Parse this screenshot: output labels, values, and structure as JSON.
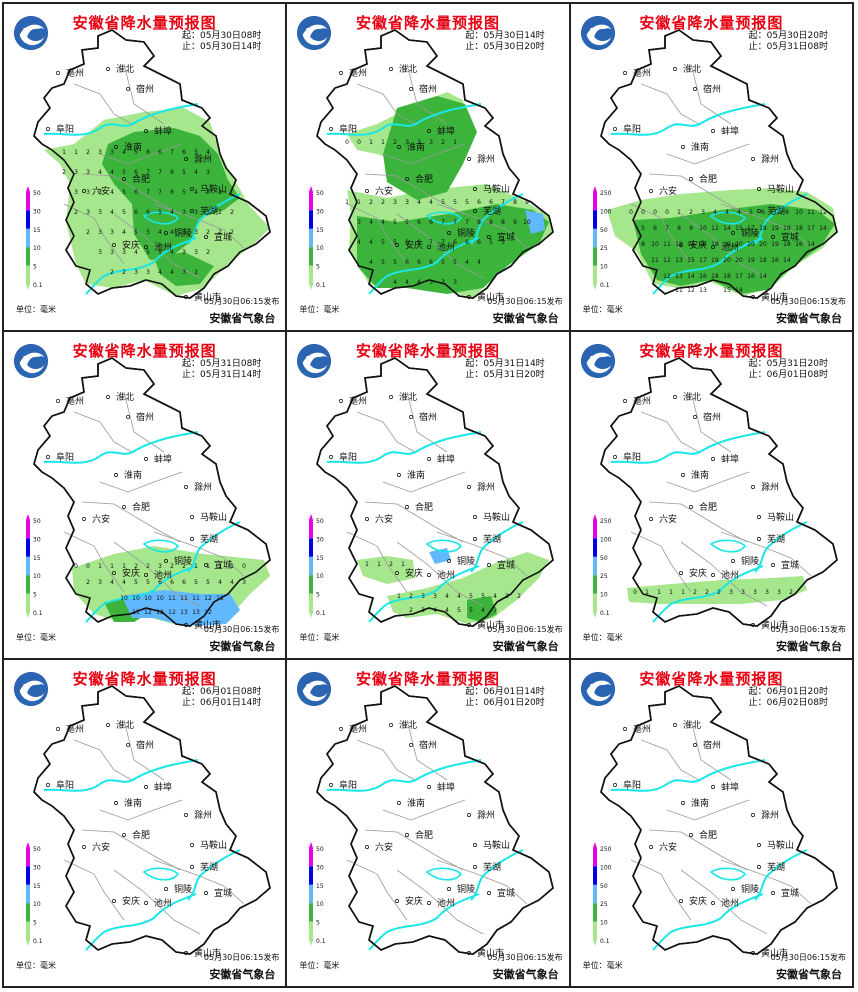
{
  "title": "安徽省降水量预报图",
  "unit_label": "单位：毫米",
  "issued": "05月30日06:15发布",
  "organization": "安徽省气象台",
  "cities": [
    "淮北",
    "亳州",
    "宿州",
    "阜阳",
    "蚌埠",
    "淮南",
    "滁州",
    "六安",
    "合肥",
    "马鞍山",
    "芜湖",
    "铜陵",
    "安庆",
    "池州",
    "宣城",
    "黄山市"
  ],
  "legends": {
    "low": [
      "50",
      "30",
      "15",
      "10",
      "5",
      "0.1"
    ],
    "high": [
      "250",
      "100",
      "50",
      "25",
      "10",
      "0.1"
    ]
  },
  "colors": {
    "title": "#e60012",
    "light_green": "#a6e68c",
    "green": "#3cb43c",
    "blue": "#61b8ff",
    "dark_blue": "#0000e6",
    "magenta": "#e600e6",
    "river": "#19e6e6"
  },
  "panels": [
    {
      "start": "起：05月30日08时",
      "end": "止：05月30日14时",
      "legend": "low"
    },
    {
      "start": "起：05月30日14时",
      "end": "止：05月30日20时",
      "legend": "low"
    },
    {
      "start": "起：05月30日20时",
      "end": "止：05月31日08时",
      "legend": "high"
    },
    {
      "start": "起：05月31日08时",
      "end": "止：05月31日14时",
      "legend": "low"
    },
    {
      "start": "起：05月31日14时",
      "end": "止：05月31日20时",
      "legend": "low"
    },
    {
      "start": "起：05月31日20时",
      "end": "止：06月01日08时",
      "legend": "high"
    },
    {
      "start": "起：06月01日08时",
      "end": "止：06月01日14时",
      "legend": "low"
    },
    {
      "start": "起：06月01日14时",
      "end": "止：06月01日20时",
      "legend": "low"
    },
    {
      "start": "起：06月01日20时",
      "end": "止：06月02日08时",
      "legend": "high"
    }
  ]
}
